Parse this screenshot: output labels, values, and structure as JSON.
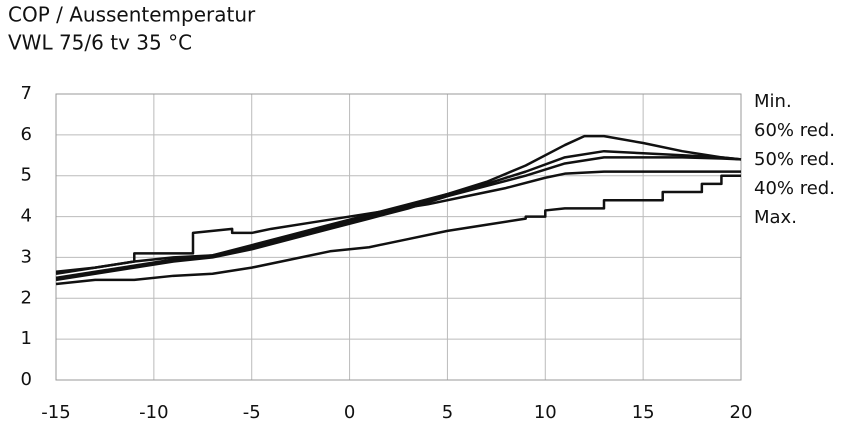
{
  "chart_data": {
    "type": "line",
    "title": "COP / Aussentemperatur",
    "subtitle": "VWL 75/6 tv 35 °C",
    "xlim": [
      -15,
      20
    ],
    "xticks": [
      -15,
      -10,
      -5,
      0,
      5,
      10,
      15,
      20
    ],
    "ylim": [
      0,
      7
    ],
    "yticks": [
      0,
      1,
      2,
      3,
      4,
      5,
      6,
      7
    ],
    "grid": true,
    "legend": "right",
    "series": [
      {
        "name": "Min.",
        "color": "#111111",
        "x": [
          -15,
          -13,
          -11,
          -9,
          -7,
          -5,
          -3,
          -1,
          1,
          3,
          5,
          7,
          9,
          11,
          12,
          13,
          15,
          17,
          19,
          20
        ],
        "values": [
          2.6,
          2.75,
          2.9,
          3.0,
          3.05,
          3.3,
          3.55,
          3.8,
          4.05,
          4.3,
          4.55,
          4.85,
          5.25,
          5.75,
          5.97,
          5.97,
          5.8,
          5.6,
          5.45,
          5.4
        ]
      },
      {
        "name": "60% red.",
        "color": "#111111",
        "x": [
          -15,
          -13,
          -11,
          -9,
          -7,
          -5,
          -3,
          -1,
          1,
          3,
          5,
          7,
          9,
          11,
          13,
          15,
          17,
          19,
          20
        ],
        "values": [
          2.5,
          2.65,
          2.8,
          2.95,
          3.05,
          3.25,
          3.5,
          3.75,
          4.0,
          4.25,
          4.55,
          4.8,
          5.1,
          5.45,
          5.6,
          5.55,
          5.5,
          5.45,
          5.4
        ]
      },
      {
        "name": "50% red.",
        "color": "#111111",
        "x": [
          -15,
          -13,
          -11,
          -9,
          -7,
          -5,
          -3,
          -1,
          1,
          3,
          5,
          7,
          9,
          11,
          13,
          15,
          17,
          19,
          20
        ],
        "values": [
          2.45,
          2.6,
          2.75,
          2.9,
          3.0,
          3.2,
          3.45,
          3.7,
          3.95,
          4.2,
          4.5,
          4.75,
          5.0,
          5.3,
          5.45,
          5.45,
          5.45,
          5.42,
          5.4
        ]
      },
      {
        "name": "40% red.",
        "color": "#111111",
        "x": [
          -15,
          -13,
          -11,
          -11,
          -8,
          -8,
          -6,
          -6,
          -5,
          -4,
          -2,
          0,
          2,
          4,
          6,
          8,
          10,
          11,
          13,
          15,
          17,
          19,
          20
        ],
        "values": [
          2.65,
          2.75,
          2.9,
          3.1,
          3.1,
          3.6,
          3.7,
          3.6,
          3.6,
          3.7,
          3.85,
          4.0,
          4.15,
          4.3,
          4.5,
          4.7,
          4.95,
          5.05,
          5.1,
          5.1,
          5.1,
          5.1,
          5.1
        ]
      },
      {
        "name": "Max.",
        "color": "#111111",
        "x": [
          -15,
          -13,
          -11,
          -9,
          -7,
          -5,
          -3,
          -1,
          1,
          3,
          5,
          7,
          9,
          9,
          10,
          10,
          11,
          13,
          13,
          16,
          16,
          18,
          18,
          19,
          19,
          20
        ],
        "values": [
          2.35,
          2.45,
          2.45,
          2.55,
          2.6,
          2.75,
          2.95,
          3.15,
          3.25,
          3.45,
          3.65,
          3.8,
          3.95,
          4.0,
          4.0,
          4.15,
          4.2,
          4.2,
          4.4,
          4.4,
          4.6,
          4.6,
          4.8,
          4.8,
          5.0,
          5.0
        ]
      }
    ]
  }
}
